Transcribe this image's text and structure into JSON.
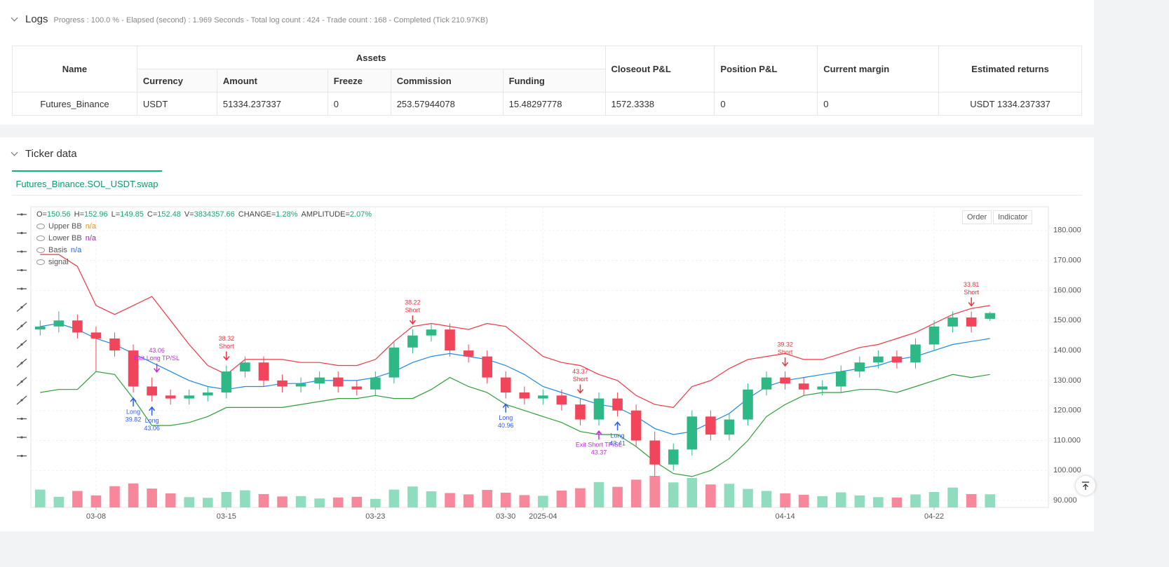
{
  "logs": {
    "title": "Logs",
    "summary": "Progress : 100.0 % - Elapsed (second) : 1.969  Seconds - Total log count : 424 - Trade count : 168 - Completed (Tick 210.97KB)"
  },
  "table": {
    "group": "Assets",
    "headers": [
      "Name",
      "Currency",
      "Amount",
      "Freeze",
      "Commission",
      "Funding",
      "Closeout P&L",
      "Position P&L",
      "Current margin",
      "Estimated returns"
    ],
    "rows": [
      [
        "Futures_Binance",
        "USDT",
        "51334.237337",
        "0",
        "253.57944078",
        "15.48297778",
        "1572.3338",
        "0",
        "0",
        "USDT 1334.237337"
      ]
    ]
  },
  "ticker": {
    "title": "Ticker data",
    "tab": "Futures_Binance.SOL_USDT.swap"
  },
  "chart_data": {
    "type": "candlestick",
    "ohlc_info": [
      [
        "O=",
        "150.56"
      ],
      [
        "H=",
        "152.96"
      ],
      [
        "L=",
        "149.85"
      ],
      [
        "C=",
        "152.48"
      ],
      [
        "V=",
        "3834357.66"
      ],
      [
        "CHANGE=",
        "1.28%"
      ],
      [
        "AMPLITUDE=",
        "2.07%"
      ]
    ],
    "legend": [
      {
        "name": "Upper BB",
        "value": "n/a",
        "color": "#f7931a"
      },
      {
        "name": "Lower BB",
        "value": "n/a",
        "color": "#9c27b0"
      },
      {
        "name": "Basis",
        "value": "n/a",
        "color": "#2962ff"
      },
      {
        "name": "signal",
        "value": null,
        "color": null
      }
    ],
    "buttons": [
      "Order",
      "Indicator"
    ],
    "up_color": "#2eb886",
    "down_color": "#f0455a",
    "volume_up_color": "#8fdcbf",
    "volume_down_color": "#f7879a",
    "band_colors": {
      "upper": "#f23645",
      "basis": "#1e88e5",
      "lower": "#2e9e3a"
    },
    "grid": true,
    "ylim": [
      87.7,
      187.9
    ],
    "yticks": [
      {
        "value": 90,
        "label": "90.000"
      },
      {
        "value": 100,
        "label": "100.000"
      },
      {
        "value": 110,
        "label": "110.000"
      },
      {
        "value": 120,
        "label": "120.000"
      },
      {
        "value": 130,
        "label": "130.000"
      },
      {
        "value": 140,
        "label": "140.000"
      },
      {
        "value": 150,
        "label": "150.000"
      },
      {
        "value": 160,
        "label": "160.000"
      },
      {
        "value": 170,
        "label": "170.000"
      },
      {
        "value": 180,
        "label": "180.000"
      }
    ],
    "categories": [
      null,
      null,
      null,
      "03-08",
      null,
      null,
      null,
      null,
      null,
      null,
      "03-15",
      null,
      null,
      null,
      null,
      null,
      null,
      null,
      "03-23",
      null,
      null,
      null,
      null,
      null,
      null,
      "03-30",
      null,
      "2025-04",
      null,
      null,
      null,
      null,
      null,
      null,
      null,
      null,
      null,
      null,
      null,
      null,
      "04-14",
      null,
      null,
      null,
      null,
      null,
      null,
      null,
      "04-22",
      null,
      null,
      null
    ],
    "open": [
      147,
      148,
      150,
      146,
      144,
      140,
      128,
      125,
      124,
      125,
      126,
      133,
      136,
      130,
      128,
      129,
      131,
      128,
      127,
      131,
      141,
      145,
      147,
      140,
      138,
      131,
      126,
      124,
      125,
      122,
      117,
      124,
      120,
      110,
      102,
      107,
      118,
      112,
      117,
      127,
      131,
      129,
      127,
      128,
      133,
      136,
      138,
      136,
      142,
      148,
      151,
      150.56
    ],
    "high": [
      150,
      153,
      152,
      148,
      146,
      142,
      131,
      127,
      127,
      128,
      135,
      138,
      138,
      132,
      131,
      133,
      133,
      130,
      133,
      143,
      147,
      149,
      149,
      142,
      140,
      133,
      128,
      127,
      127,
      124,
      126,
      126,
      122,
      113,
      109,
      120,
      120,
      119,
      129,
      133,
      133,
      131,
      130,
      135,
      138,
      140,
      140,
      144,
      150,
      153,
      153,
      152.96
    ],
    "low": [
      145,
      146,
      144,
      133,
      138,
      126,
      123,
      122,
      122,
      123,
      124,
      131,
      128,
      126,
      126,
      127,
      126,
      125,
      125,
      129,
      139,
      143,
      138,
      136,
      129,
      124,
      122,
      122,
      120,
      115,
      115,
      118,
      108,
      98,
      100,
      105,
      110,
      110,
      115,
      125,
      127,
      125,
      125,
      126,
      131,
      134,
      134,
      134,
      140,
      146,
      146,
      149.85
    ],
    "close": [
      148,
      150,
      146,
      144,
      140,
      128,
      125,
      124,
      125,
      126,
      133,
      136,
      130,
      128,
      129,
      131,
      128,
      127,
      131,
      141,
      145,
      147,
      140,
      138,
      131,
      126,
      124,
      125,
      122,
      117,
      124,
      120,
      110,
      102,
      107,
      118,
      112,
      117,
      127,
      131,
      129,
      127,
      128,
      133,
      136,
      138,
      136,
      142,
      148,
      151,
      148,
      152.48
    ],
    "volume": [
      5200000,
      3100000,
      4800000,
      3500000,
      6200000,
      7000000,
      5500000,
      4100000,
      3000000,
      2800000,
      4500000,
      5000000,
      3900000,
      3200000,
      3300000,
      2600000,
      2900000,
      3100000,
      2500000,
      5200000,
      6100000,
      4700000,
      4200000,
      3800000,
      5100000,
      4300000,
      3600000,
      3400000,
      4900000,
      5600000,
      7400000,
      6000000,
      8100000,
      9200000,
      7300000,
      8600000,
      6700000,
      6900000,
      5400000,
      4800000,
      4100000,
      3700000,
      3300000,
      4400000,
      3500000,
      3000000,
      2900000,
      3800000,
      4500000,
      5800000,
      3900000,
      3834357.66
    ],
    "bands": {
      "upper": [
        172,
        172,
        168,
        155,
        152,
        155,
        158,
        150,
        142,
        135,
        132,
        137,
        137,
        137,
        136,
        136,
        135,
        135,
        137,
        143,
        148,
        149,
        148,
        147,
        149,
        148,
        143,
        138,
        136,
        135,
        132,
        130,
        125,
        122,
        121,
        128,
        130,
        134,
        137,
        138,
        139,
        137,
        137,
        139,
        141,
        142,
        144,
        146,
        149,
        152,
        154,
        155
      ],
      "basis": [
        148,
        149,
        147,
        144,
        142,
        139,
        136,
        133,
        130,
        128,
        127,
        128,
        128,
        129,
        129,
        130,
        130,
        130,
        131,
        133,
        136,
        138,
        139,
        138,
        137,
        135,
        132,
        128,
        126,
        124,
        122,
        121,
        118,
        114,
        112,
        113,
        116,
        119,
        124,
        128,
        130,
        131,
        132,
        133,
        134,
        135,
        137,
        138,
        140,
        142,
        143,
        144
      ],
      "lower": [
        126,
        127,
        127,
        133,
        132,
        124,
        115,
        115,
        116,
        118,
        121,
        121,
        121,
        121,
        122,
        123,
        124,
        124,
        125,
        124,
        124,
        127,
        131,
        128,
        126,
        122,
        120,
        118,
        116,
        113,
        112,
        112,
        108,
        103,
        99,
        98,
        100,
        104,
        110,
        118,
        122,
        125,
        126,
        126,
        127,
        127,
        126,
        128,
        130,
        132,
        131,
        132
      ]
    },
    "signals": [
      null,
      null,
      null,
      null,
      null,
      [
        {
          "kind": "Long",
          "price": "39.82",
          "side": "below",
          "color": "#2f5cf0"
        }
      ],
      [
        {
          "kind": "Long",
          "price": "43.06",
          "side": "below",
          "color": "#2f5cf0"
        },
        {
          "kind": "Exit Long TP/SL",
          "price": "43.06",
          "side": "above",
          "color": "#c02ce0"
        }
      ],
      null,
      null,
      null,
      [
        {
          "kind": "Short",
          "price": "38.32",
          "side": "above",
          "color": "#e8323c"
        }
      ],
      null,
      null,
      null,
      null,
      null,
      null,
      null,
      null,
      null,
      [
        {
          "kind": "Short",
          "price": "38.22",
          "side": "above",
          "color": "#e8323c"
        }
      ],
      null,
      null,
      null,
      null,
      [
        {
          "kind": "Long",
          "price": "40.96",
          "side": "below",
          "color": "#2f5cf0"
        }
      ],
      null,
      null,
      null,
      [
        {
          "kind": "Short",
          "price": "43.37",
          "side": "above",
          "color": "#e8323c"
        }
      ],
      [
        {
          "kind": "Exit Short TP/SL",
          "price": "43.37",
          "side": "below",
          "color": "#c02ce0"
        }
      ],
      [
        {
          "kind": "Long",
          "price": "43.41",
          "side": "below",
          "color": "#2f5cf0"
        }
      ],
      null,
      null,
      null,
      null,
      null,
      null,
      null,
      null,
      [
        {
          "kind": "Short",
          "price": "39.32",
          "side": "above",
          "color": "#e8323c"
        }
      ],
      null,
      null,
      null,
      null,
      null,
      null,
      null,
      null,
      null,
      [
        {
          "kind": "Short",
          "price": "33.81",
          "side": "above",
          "color": "#e8323c"
        }
      ],
      null
    ]
  }
}
